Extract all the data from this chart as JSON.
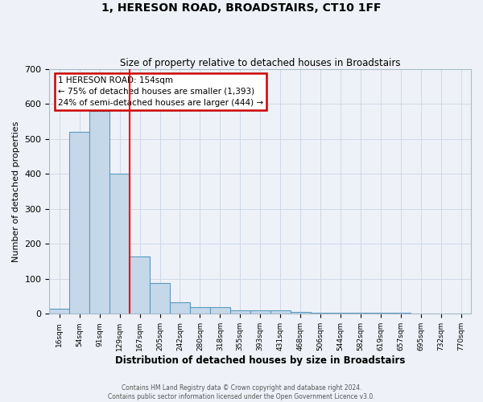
{
  "title": "1, HERESON ROAD, BROADSTAIRS, CT10 1FF",
  "subtitle": "Size of property relative to detached houses in Broadstairs",
  "xlabel": "Distribution of detached houses by size in Broadstairs",
  "ylabel": "Number of detached properties",
  "bar_labels": [
    "16sqm",
    "54sqm",
    "91sqm",
    "129sqm",
    "167sqm",
    "205sqm",
    "242sqm",
    "280sqm",
    "318sqm",
    "355sqm",
    "393sqm",
    "431sqm",
    "468sqm",
    "506sqm",
    "544sqm",
    "582sqm",
    "619sqm",
    "657sqm",
    "695sqm",
    "732sqm",
    "770sqm"
  ],
  "bar_values": [
    15,
    520,
    580,
    400,
    165,
    88,
    33,
    20,
    20,
    10,
    10,
    10,
    5,
    4,
    3,
    3,
    2,
    2,
    1,
    1,
    1
  ],
  "bar_color": "#c5d8ea",
  "bar_edge_color": "#5a9abf",
  "grid_color": "#d0d8e8",
  "background_color": "#eef2f8",
  "red_line_x": 3.5,
  "annotation_text": "1 HERESON ROAD: 154sqm\n← 75% of detached houses are smaller (1,393)\n24% of semi-detached houses are larger (444) →",
  "annotation_box_color": "#ffffff",
  "annotation_box_edge_color": "#cc0000",
  "footer_line1": "Contains HM Land Registry data © Crown copyright and database right 2024.",
  "footer_line2": "Contains public sector information licensed under the Open Government Licence v3.0.",
  "ylim": [
    0,
    700
  ],
  "yticks": [
    0,
    100,
    200,
    300,
    400,
    500,
    600,
    700
  ]
}
